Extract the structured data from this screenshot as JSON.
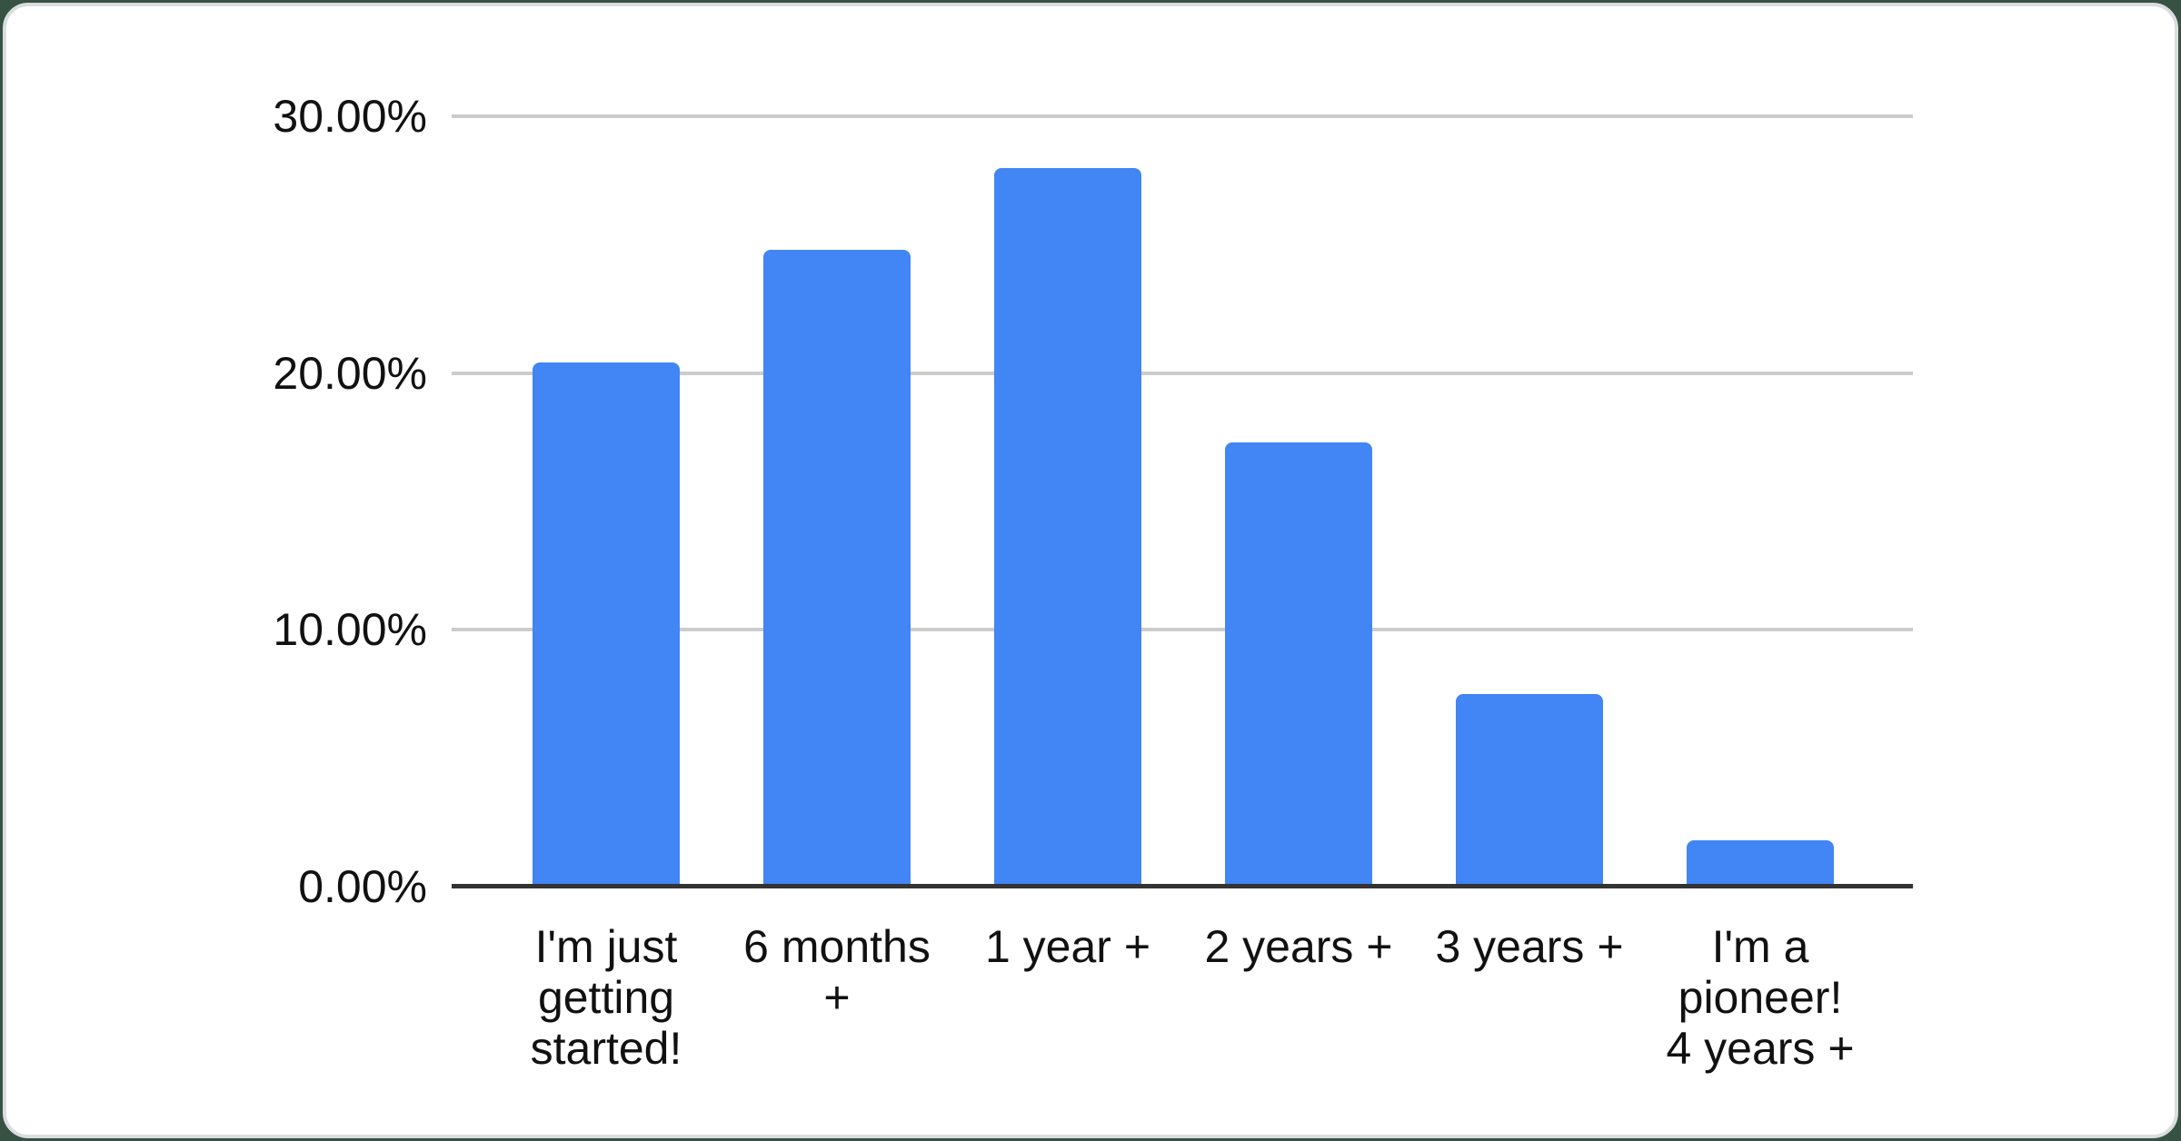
{
  "page": {
    "background_color": "#375243",
    "card_background": "#ffffff",
    "card_border_color": "#d9dde0"
  },
  "chart_data": {
    "type": "bar",
    "title": "",
    "xlabel": "",
    "ylabel": "",
    "categories": [
      "I'm just getting started!",
      "6 months +",
      "1 year +",
      "2 years +",
      "3 years +",
      "I'm a pioneer! 4 years +"
    ],
    "category_lines": [
      [
        "I'm just",
        "getting",
        "started!"
      ],
      [
        "6 months",
        "+"
      ],
      [
        "1 year +"
      ],
      [
        "2 years +"
      ],
      [
        "3 years +"
      ],
      [
        "I'm a",
        "pioneer!",
        "4 years +"
      ]
    ],
    "values": [
      20.4,
      24.8,
      28.0,
      17.3,
      7.5,
      1.8
    ],
    "unit": "%",
    "ylim": [
      0,
      30
    ],
    "ytick_step": 10,
    "ytick_labels": [
      "0.00%",
      "10.00%",
      "20.00%",
      "30.00%"
    ],
    "grid": true,
    "legend_position": "none",
    "bar_color": "#4285F4",
    "gridline_color": "#cccccc",
    "axis_line_color": "#333333",
    "label_color": "#111111"
  }
}
